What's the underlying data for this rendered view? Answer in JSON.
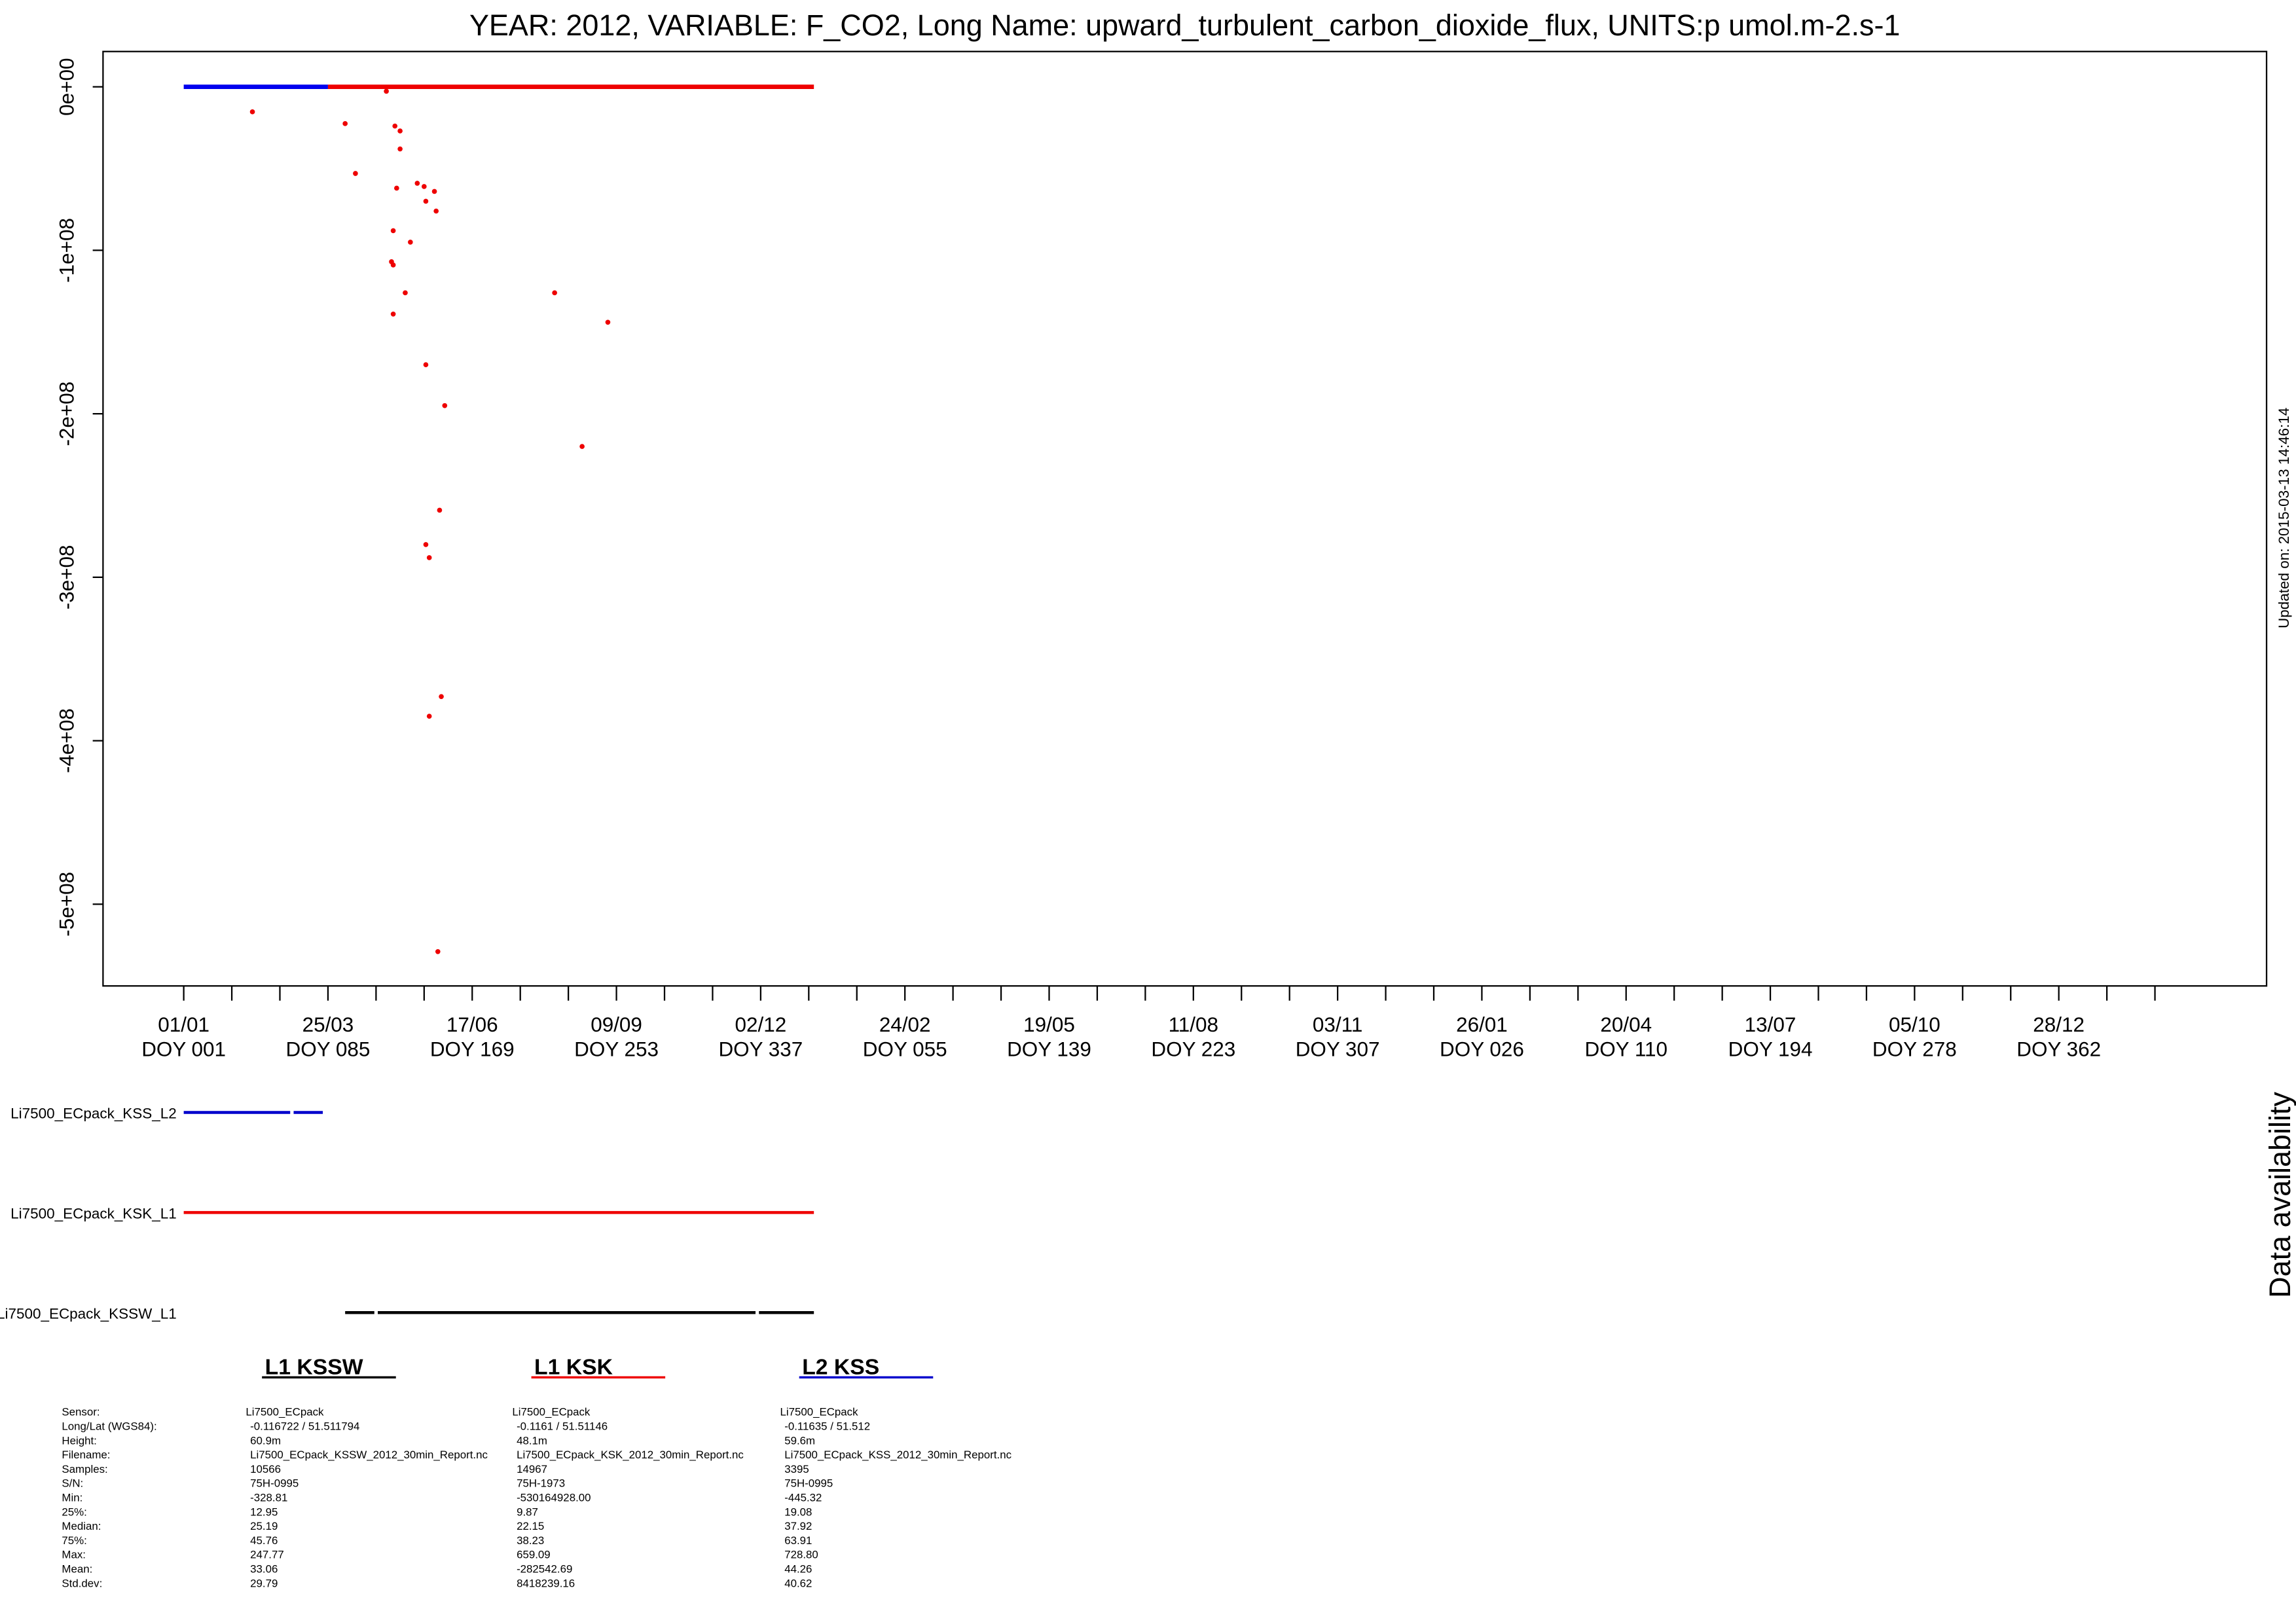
{
  "chart_data": [
    {
      "type": "scatter",
      "title": "YEAR: 2012, VARIABLE: F_CO2, Long Name: upward_turbulent_carbon_dioxide_flux, UNITS:p umol.m-2.s-1",
      "xlim": [
        -47,
        1213
      ],
      "ylim": [
        -550000000,
        21600000
      ],
      "xticks": [
        {
          "value": 0,
          "label": "01/01\nDOY 001"
        },
        {
          "value": 84,
          "label": "25/03\nDOY 085"
        },
        {
          "value": 168,
          "label": "17/06\nDOY 169"
        },
        {
          "value": 252,
          "label": "09/09\nDOY 253"
        },
        {
          "value": 336,
          "label": "02/12\nDOY 337"
        },
        {
          "value": 420,
          "label": "24/02\nDOY 055"
        },
        {
          "value": 504,
          "label": "19/05\nDOY 139"
        },
        {
          "value": 588,
          "label": "11/08\nDOY 223"
        },
        {
          "value": 672,
          "label": "03/11\nDOY 307"
        },
        {
          "value": 756,
          "label": "26/01\nDOY 026"
        },
        {
          "value": 840,
          "label": "20/04\nDOY 110"
        },
        {
          "value": 924,
          "label": "13/07\nDOY 194"
        },
        {
          "value": 1008,
          "label": "05/10\nDOY 278"
        },
        {
          "value": 1092,
          "label": "28/12\nDOY 362"
        }
      ],
      "xminorticks": [
        28,
        56,
        112,
        140,
        196,
        224,
        280,
        308,
        364,
        392,
        448,
        476,
        532,
        560,
        616,
        644,
        700,
        728,
        784,
        812,
        868,
        896,
        952,
        980,
        1036,
        1064,
        1120,
        1148
      ],
      "yticks": [
        {
          "value": 0,
          "label": "0e+00"
        },
        {
          "value": -100000000,
          "label": "-1e+08"
        },
        {
          "value": -200000000,
          "label": "-2e+08"
        },
        {
          "value": -300000000,
          "label": "-3e+08"
        },
        {
          "value": -400000000,
          "label": "-4e+08"
        },
        {
          "value": -500000000,
          "label": "-5e+08"
        }
      ],
      "series": [
        {
          "mode": "line",
          "color": "#0000ee",
          "x": [
            0,
            84
          ],
          "values": [
            0,
            0
          ]
        },
        {
          "mode": "line",
          "color": "#ee0000",
          "x": [
            84,
            367
          ],
          "values": [
            0,
            0
          ]
        },
        {
          "mode": "points",
          "color": "#ee0000",
          "x": [
            40,
            94,
            118,
            100,
            123,
            126,
            126,
            124,
            136,
            140,
            146,
            141,
            147,
            122,
            132,
            121,
            122,
            129,
            122,
            216,
            247,
            141,
            152,
            232,
            149,
            141,
            143,
            150,
            143,
            148
          ],
          "values": [
            -15300000,
            -22500000,
            -2700000,
            -53000000,
            -24000000,
            -27000000,
            -38000000,
            -62000000,
            -59000000,
            -61000000,
            -64000000,
            -70000000,
            -76000000,
            -88000000,
            -95000000,
            -107000000,
            -109000000,
            -126000000,
            -139000000,
            -126000000,
            -144000000,
            -170000000,
            -195000000,
            -220000000,
            -259000000,
            -280000000,
            -288000000,
            -373000000,
            -385000000,
            -529000000
          ]
        }
      ]
    },
    {
      "type": "timeline",
      "label": "Data availability",
      "rows": [
        {
          "name": "Li7500_ECpack_KSS_L2",
          "color": "#0000cc",
          "segments": [
            [
              0,
              62
            ],
            [
              64,
              81
            ]
          ]
        },
        {
          "name": "Li7500_ECpack_KSK_L1",
          "color": "#ee0000",
          "segments": [
            [
              0,
              367
            ]
          ]
        },
        {
          "name": "Li7500_ECpack_KSSW_L1",
          "color": "#000000",
          "segments": [
            [
              94,
              111
            ],
            [
              113,
              333
            ],
            [
              335,
              367
            ]
          ]
        }
      ]
    }
  ],
  "updated": "Updated on: 2015-03-13 14:46:14",
  "stats": {
    "columns": [
      {
        "name": "L1 KSSW",
        "color": "#000000"
      },
      {
        "name": "L1 KSK",
        "color": "#ee0000"
      },
      {
        "name": "L2 KSS",
        "color": "#0000cc"
      }
    ],
    "row_labels": [
      "Sensor:",
      "Long/Lat (WGS84):",
      "Height:",
      "Filename:",
      "Samples:",
      "S/N:",
      "Min:",
      "25%:",
      "Median:",
      "75%:",
      "Max:",
      "Mean:",
      "Std.dev:"
    ],
    "values": [
      [
        "Li7500_ECpack",
        "-0.116722 / 51.511794",
        "60.9m",
        "Li7500_ECpack_KSSW_2012_30min_Report.nc",
        "10566",
        "75H-0995",
        "-328.81",
        "12.95",
        "25.19",
        "45.76",
        "247.77",
        "33.06",
        "29.79"
      ],
      [
        "Li7500_ECpack",
        "-0.1161 / 51.51146",
        "48.1m",
        "Li7500_ECpack_KSK_2012_30min_Report.nc",
        "14967",
        "75H-1973",
        "-530164928.00",
        "9.87",
        "22.15",
        "38.23",
        "659.09",
        "-282542.69",
        "8418239.16"
      ],
      [
        "Li7500_ECpack",
        "-0.11635 / 51.512",
        "59.6m",
        "Li7500_ECpack_KSS_2012_30min_Report.nc",
        "3395",
        "75H-0995",
        "-445.32",
        "19.08",
        "37.92",
        "63.91",
        "728.80",
        "44.26",
        "40.62"
      ]
    ]
  }
}
